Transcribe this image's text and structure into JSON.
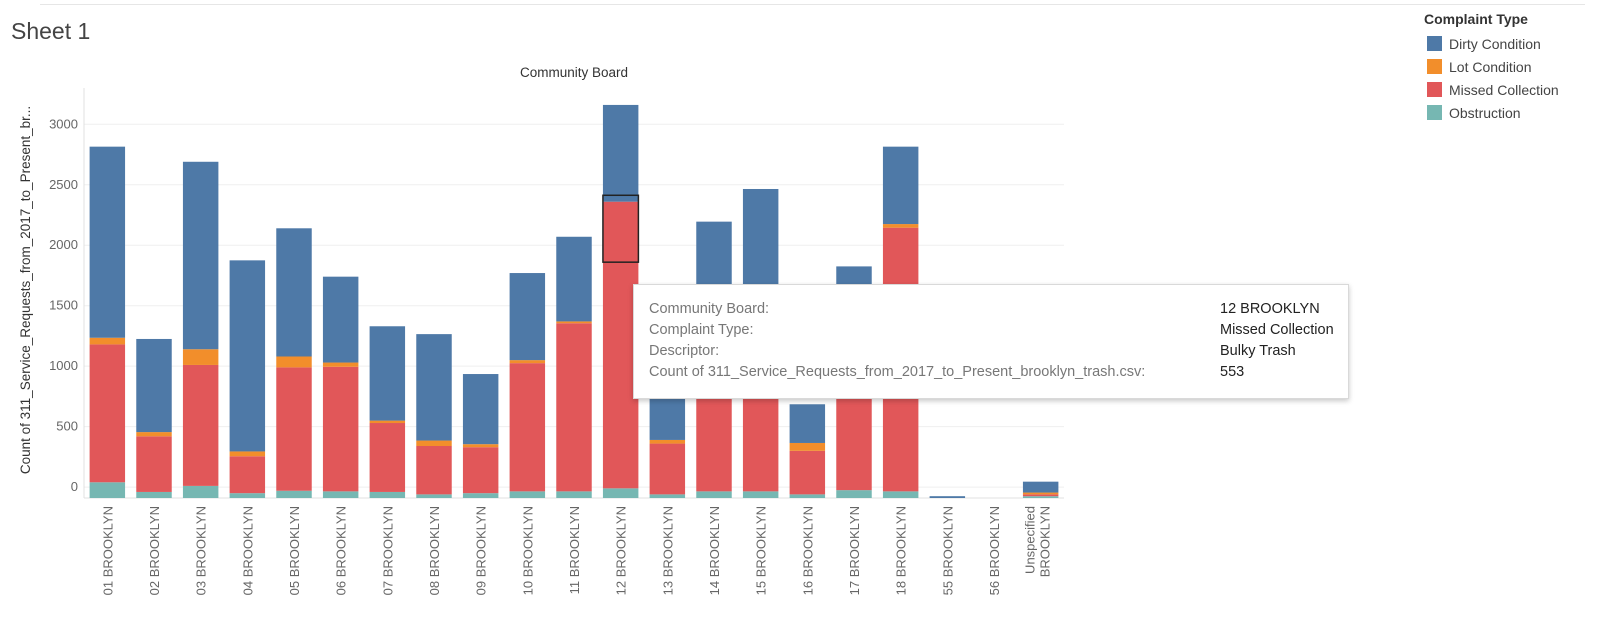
{
  "sheet": {
    "title": "Sheet 1"
  },
  "chart_data": {
    "type": "bar",
    "stacked": true,
    "title": "Community Board",
    "xlabel": "",
    "ylabel": "Count of 311_Service_Requests_from_2017_to_Present_br...",
    "ylim": [
      -90,
      3300
    ],
    "yticks": [
      0,
      500,
      1000,
      1500,
      2000,
      2500,
      3000
    ],
    "categories": [
      "01 BROOKLYN",
      "02 BROOKLYN",
      "03 BROOKLYN",
      "04 BROOKLYN",
      "05 BROOKLYN",
      "06 BROOKLYN",
      "07 BROOKLYN",
      "08 BROOKLYN",
      "09 BROOKLYN",
      "10 BROOKLYN",
      "11 BROOKLYN",
      "12 BROOKLYN",
      "13 BROOKLYN",
      "14 BROOKLYN",
      "15 BROOKLYN",
      "16 BROOKLYN",
      "17 BROOKLYN",
      "18 BROOKLYN",
      "55 BROOKLYN",
      "56 BROOKLYN",
      "Unspecified BROOKLYN"
    ],
    "series": [
      {
        "name": "Obstruction",
        "color": "#76B7B2",
        "values": [
          130,
          50,
          100,
          40,
          60,
          55,
          50,
          30,
          40,
          55,
          55,
          80,
          30,
          55,
          55,
          30,
          65,
          55,
          0,
          0,
          15
        ]
      },
      {
        "name": "Missed Collection",
        "color": "#E15759",
        "values": [
          1140,
          460,
          1000,
          305,
          1020,
          1030,
          570,
          400,
          380,
          1060,
          1390,
          2370,
          420,
          1250,
          1500,
          360,
          1280,
          2180,
          0,
          0,
          15
        ]
      },
      {
        "name": "Lot Condition",
        "color": "#F28E2B",
        "values": [
          55,
          35,
          130,
          40,
          90,
          35,
          20,
          45,
          25,
          25,
          15,
          0,
          30,
          0,
          0,
          65,
          0,
          30,
          0,
          0,
          15
        ]
      },
      {
        "name": "Dirty Condition",
        "color": "#4E79A7",
        "values": [
          1580,
          770,
          1550,
          1580,
          1060,
          710,
          780,
          880,
          580,
          720,
          700,
          800,
          390,
          980,
          1000,
          320,
          570,
          640,
          15,
          0,
          90
        ]
      }
    ],
    "selected": {
      "category": "12 BROOKLYN",
      "series": "Missed Collection",
      "range": [
        1860,
        2413
      ]
    }
  },
  "legend": {
    "title": "Complaint Type",
    "items": [
      {
        "label": "Dirty Condition",
        "color": "#4E79A7"
      },
      {
        "label": "Lot Condition",
        "color": "#F28E2B"
      },
      {
        "label": "Missed Collection",
        "color": "#E15759"
      },
      {
        "label": "Obstruction",
        "color": "#76B7B2"
      }
    ]
  },
  "tooltip": {
    "rows": [
      {
        "label": "Community Board:",
        "value": "12 BROOKLYN"
      },
      {
        "label": "Complaint Type:",
        "value": "Missed Collection"
      },
      {
        "label": "Descriptor:",
        "value": "Bulky Trash"
      },
      {
        "label": "Count of 311_Service_Requests_from_2017_to_Present_brooklyn_trash.csv:",
        "value": "553"
      }
    ]
  }
}
